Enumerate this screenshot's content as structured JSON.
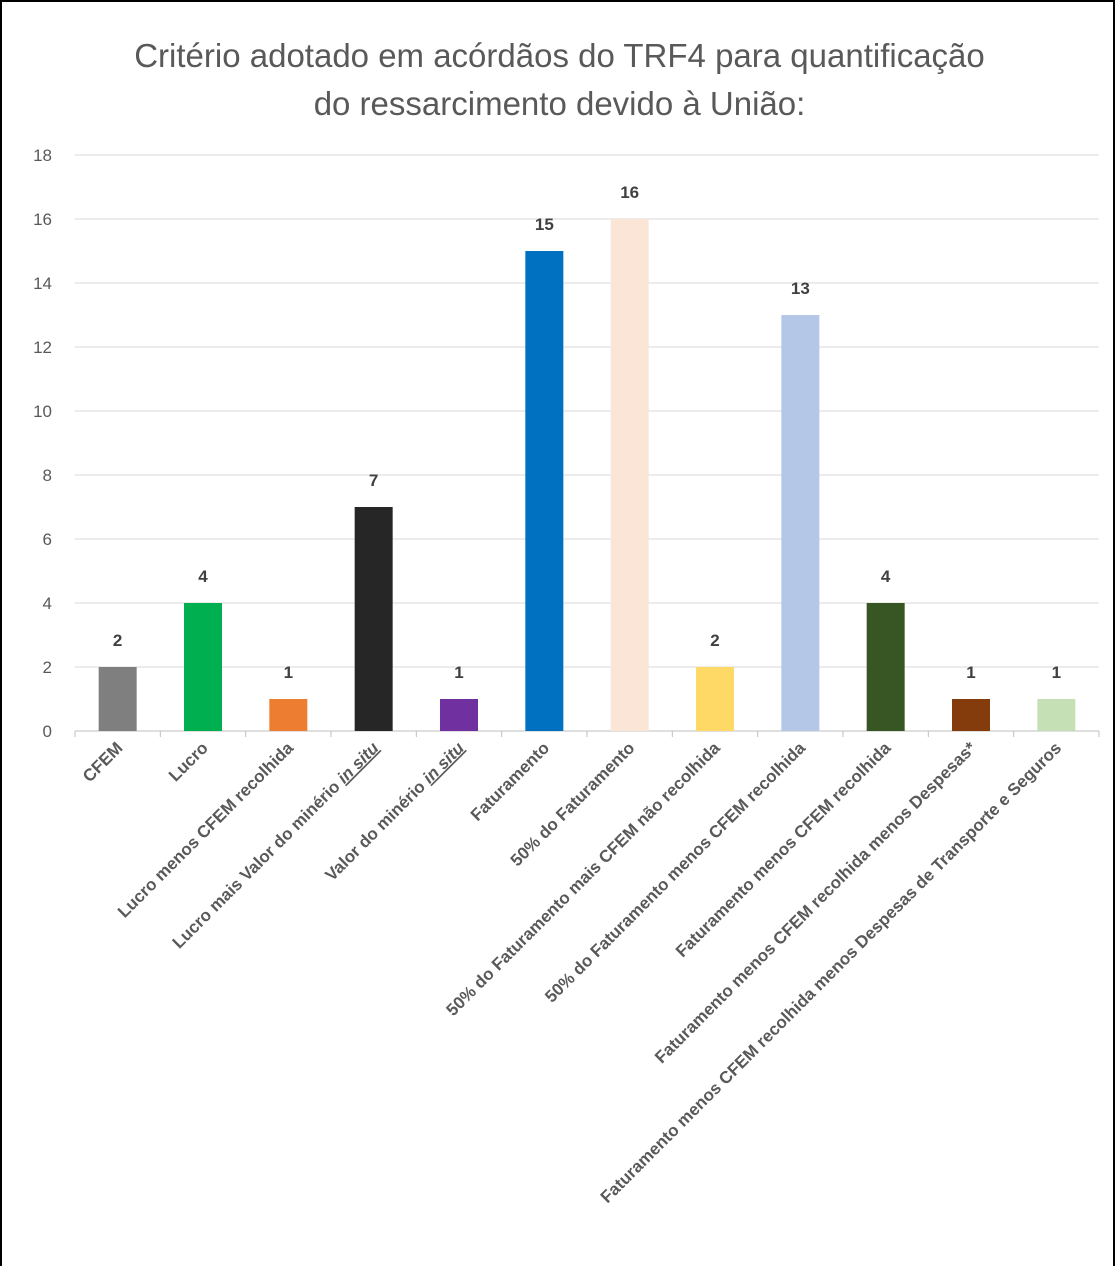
{
  "chart_data": {
    "type": "bar",
    "title_lines": [
      "Critério adotado em acórdãos do TRF4 para quantificação",
      "do ressarcimento devido à União:"
    ],
    "categories": [
      {
        "parts": [
          {
            "text": "CFEM"
          }
        ]
      },
      {
        "parts": [
          {
            "text": "Lucro"
          }
        ]
      },
      {
        "parts": [
          {
            "text": "Lucro menos CFEM recolhida"
          }
        ]
      },
      {
        "parts": [
          {
            "text": "Lucro mais Valor do minério "
          },
          {
            "text": "in situ",
            "italic": true
          }
        ]
      },
      {
        "parts": [
          {
            "text": "Valor do minério "
          },
          {
            "text": "in situ",
            "italic": true
          }
        ]
      },
      {
        "parts": [
          {
            "text": "Faturamento"
          }
        ]
      },
      {
        "parts": [
          {
            "text": "50% do Faturamento"
          }
        ]
      },
      {
        "parts": [
          {
            "text": "50% do Faturamento mais CFEM não recolhida"
          }
        ]
      },
      {
        "parts": [
          {
            "text": "50% do Faturamento menos CFEM recolhida"
          }
        ]
      },
      {
        "parts": [
          {
            "text": "Faturamento menos CFEM recolhida"
          }
        ]
      },
      {
        "parts": [
          {
            "text": "Faturamento menos CFEM recolhida menos Despesas*"
          }
        ]
      },
      {
        "parts": [
          {
            "text": "Faturamento menos CFEM recolhida menos Despesas de Transporte e Seguros"
          }
        ]
      }
    ],
    "values": [
      2,
      4,
      1,
      7,
      1,
      15,
      16,
      2,
      13,
      4,
      1,
      1
    ],
    "colors": [
      "#7f7f7f",
      "#00b050",
      "#ed7d31",
      "#262626",
      "#7030a0",
      "#0070c0",
      "#fbe5d6",
      "#ffd966",
      "#b4c7e7",
      "#375623",
      "#843c0c",
      "#c5e0b4"
    ],
    "ylim": [
      0,
      18
    ],
    "yticks": [
      0,
      2,
      4,
      6,
      8,
      10,
      12,
      14,
      16,
      18
    ],
    "grid": true,
    "legend": "none"
  }
}
